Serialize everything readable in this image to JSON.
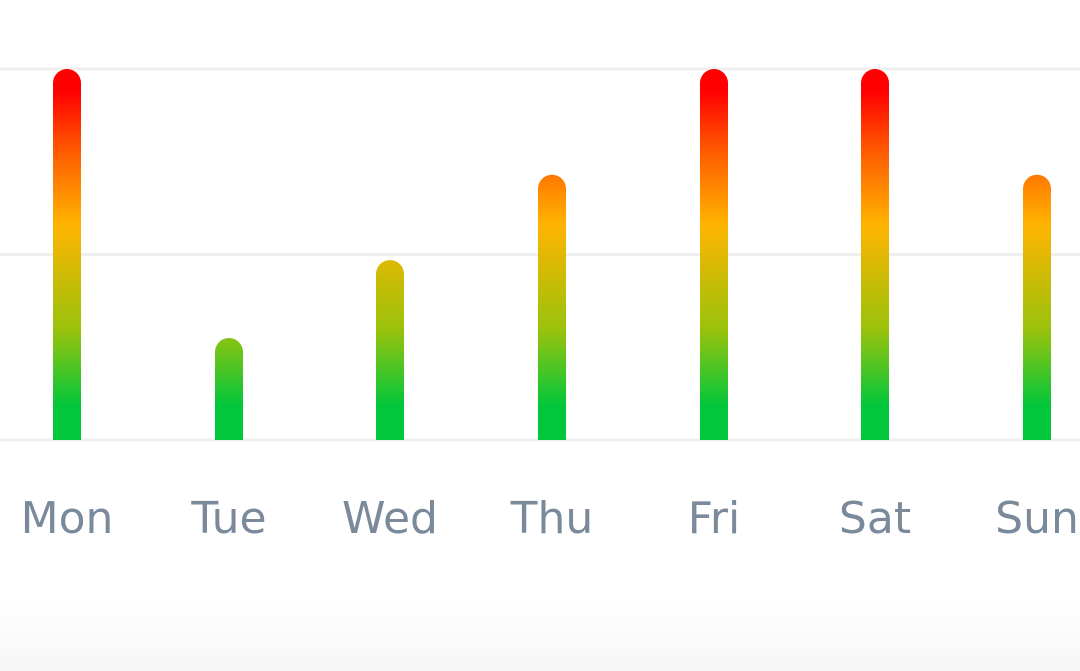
{
  "chart_data": {
    "type": "bar",
    "categories": [
      "Mon",
      "Tue",
      "Wed",
      "Thu",
      "Fri",
      "Sat",
      "Sun"
    ],
    "values": [
      2,
      0.55,
      0.97,
      1.43,
      2,
      2,
      1.43
    ],
    "ylim": [
      0,
      2
    ],
    "grid": true,
    "gridline_values": [
      0,
      1,
      2
    ],
    "legend": "none",
    "colors": {
      "gradient_low": "#00c73c",
      "gradient_mid_low": "#9bc20b",
      "gradient_mid": "#ffb400",
      "gradient_mid_high": "#ff5a00",
      "gradient_high": "#ff0000",
      "gridline": "#efefef",
      "tick_label": "#7b8a9a"
    }
  }
}
